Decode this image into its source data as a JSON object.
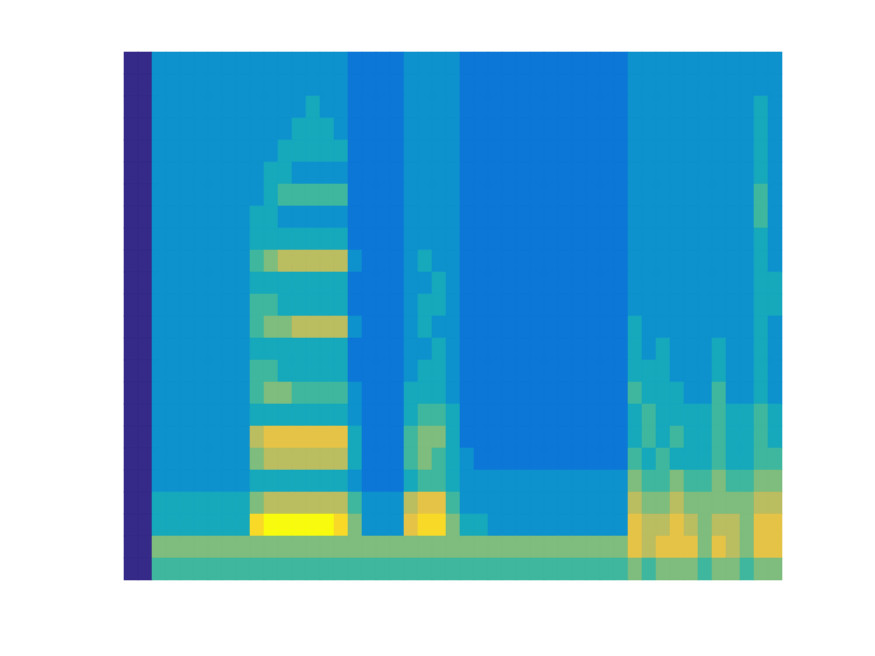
{
  "chart_data": {
    "type": "heatmap",
    "tick_labels": false,
    "zlim": [
      0,
      10
    ],
    "z": [
      [
        0,
        0,
        3,
        3,
        3,
        3,
        3,
        3,
        3,
        3,
        3,
        3,
        3,
        3,
        3,
        3,
        2,
        2,
        2,
        2,
        3,
        3,
        3,
        3,
        2,
        2,
        2,
        2,
        2,
        2,
        2,
        2,
        2,
        2,
        2,
        2,
        3,
        3,
        3,
        3,
        3,
        3,
        3,
        3,
        3,
        3,
        3
      ],
      [
        0,
        0,
        3,
        3,
        3,
        3,
        3,
        3,
        3,
        3,
        3,
        3,
        3,
        3,
        3,
        3,
        2,
        2,
        2,
        2,
        3,
        3,
        3,
        3,
        2,
        2,
        2,
        2,
        2,
        2,
        2,
        2,
        2,
        2,
        2,
        2,
        3,
        3,
        3,
        3,
        3,
        3,
        3,
        3,
        3,
        3,
        3
      ],
      [
        0,
        0,
        3,
        3,
        3,
        3,
        3,
        3,
        3,
        3,
        3,
        3,
        3,
        4,
        3,
        3,
        2,
        2,
        2,
        2,
        3,
        3,
        3,
        3,
        2,
        2,
        2,
        2,
        2,
        2,
        2,
        2,
        2,
        2,
        2,
        2,
        3,
        3,
        3,
        3,
        3,
        3,
        3,
        3,
        3,
        4,
        3
      ],
      [
        0,
        0,
        3,
        3,
        3,
        3,
        3,
        3,
        3,
        3,
        3,
        3,
        4,
        4,
        4,
        3,
        2,
        2,
        2,
        2,
        3,
        3,
        3,
        3,
        2,
        2,
        2,
        2,
        2,
        2,
        2,
        2,
        2,
        2,
        2,
        2,
        3,
        3,
        3,
        3,
        3,
        3,
        3,
        3,
        3,
        4,
        3
      ],
      [
        0,
        0,
        3,
        3,
        3,
        3,
        3,
        3,
        3,
        3,
        3,
        4,
        4,
        4,
        4,
        4,
        2,
        2,
        2,
        2,
        3,
        3,
        3,
        3,
        2,
        2,
        2,
        2,
        2,
        2,
        2,
        2,
        2,
        2,
        2,
        2,
        3,
        3,
        3,
        3,
        3,
        3,
        3,
        3,
        3,
        4,
        3
      ],
      [
        0,
        0,
        3,
        3,
        3,
        3,
        3,
        3,
        3,
        3,
        4,
        4,
        3,
        3,
        3,
        3,
        2,
        2,
        2,
        2,
        3,
        3,
        3,
        3,
        2,
        2,
        2,
        2,
        2,
        2,
        2,
        2,
        2,
        2,
        2,
        2,
        3,
        3,
        3,
        3,
        3,
        3,
        3,
        3,
        3,
        4,
        3
      ],
      [
        0,
        0,
        3,
        3,
        3,
        3,
        3,
        3,
        3,
        3,
        4,
        5,
        5,
        5,
        5,
        5,
        2,
        2,
        2,
        2,
        3,
        3,
        3,
        3,
        2,
        2,
        2,
        2,
        2,
        2,
        2,
        2,
        2,
        2,
        2,
        2,
        3,
        3,
        3,
        3,
        3,
        3,
        3,
        3,
        3,
        5,
        3
      ],
      [
        0,
        0,
        3,
        3,
        3,
        3,
        3,
        3,
        3,
        4,
        4,
        3,
        3,
        3,
        3,
        3,
        2,
        2,
        2,
        2,
        3,
        3,
        3,
        3,
        2,
        2,
        2,
        2,
        2,
        2,
        2,
        2,
        2,
        2,
        2,
        2,
        3,
        3,
        3,
        3,
        3,
        3,
        3,
        3,
        3,
        5,
        3
      ],
      [
        0,
        0,
        3,
        3,
        3,
        3,
        3,
        3,
        3,
        4,
        4,
        4,
        4,
        4,
        4,
        4,
        2,
        2,
        2,
        2,
        3,
        3,
        3,
        3,
        2,
        2,
        2,
        2,
        2,
        2,
        2,
        2,
        2,
        2,
        2,
        2,
        3,
        3,
        3,
        3,
        3,
        3,
        3,
        3,
        3,
        4,
        3
      ],
      [
        0,
        0,
        3,
        3,
        3,
        3,
        3,
        3,
        3,
        5,
        6,
        7,
        7,
        7,
        7,
        7,
        3,
        2,
        2,
        2,
        3,
        4,
        3,
        3,
        2,
        2,
        2,
        2,
        2,
        2,
        2,
        2,
        2,
        2,
        2,
        2,
        3,
        3,
        3,
        3,
        3,
        3,
        3,
        3,
        3,
        4,
        3
      ],
      [
        0,
        0,
        3,
        3,
        3,
        3,
        3,
        3,
        3,
        4,
        4,
        4,
        4,
        4,
        4,
        4,
        2,
        2,
        2,
        2,
        3,
        3,
        4,
        3,
        2,
        2,
        2,
        2,
        2,
        2,
        2,
        2,
        2,
        2,
        2,
        2,
        3,
        3,
        3,
        3,
        3,
        3,
        3,
        3,
        3,
        4,
        4
      ],
      [
        0,
        0,
        3,
        3,
        3,
        3,
        3,
        3,
        3,
        5,
        5,
        4,
        4,
        4,
        4,
        4,
        2,
        2,
        2,
        2,
        3,
        4,
        4,
        3,
        2,
        2,
        2,
        2,
        2,
        2,
        2,
        2,
        2,
        2,
        2,
        2,
        3,
        3,
        3,
        3,
        3,
        3,
        3,
        3,
        3,
        4,
        4
      ],
      [
        0,
        0,
        3,
        3,
        3,
        3,
        3,
        3,
        3,
        5,
        6,
        6,
        7,
        7,
        7,
        7,
        3,
        2,
        2,
        2,
        3,
        4,
        3,
        3,
        2,
        2,
        2,
        2,
        2,
        2,
        2,
        2,
        2,
        2,
        2,
        2,
        4,
        3,
        3,
        3,
        3,
        3,
        3,
        3,
        3,
        4,
        3
      ],
      [
        0,
        0,
        3,
        3,
        3,
        3,
        3,
        3,
        3,
        4,
        4,
        4,
        4,
        4,
        4,
        4,
        2,
        2,
        2,
        2,
        3,
        3,
        4,
        3,
        2,
        2,
        2,
        2,
        2,
        2,
        2,
        2,
        2,
        2,
        2,
        2,
        4,
        3,
        4,
        3,
        3,
        3,
        4,
        3,
        3,
        4,
        3
      ],
      [
        0,
        0,
        3,
        3,
        3,
        3,
        3,
        3,
        3,
        5,
        5,
        4,
        4,
        4,
        4,
        4,
        2,
        2,
        2,
        2,
        3,
        4,
        4,
        3,
        2,
        2,
        2,
        2,
        2,
        2,
        2,
        2,
        2,
        2,
        2,
        2,
        4,
        4,
        4,
        3,
        3,
        3,
        4,
        3,
        3,
        4,
        3
      ],
      [
        0,
        0,
        3,
        3,
        3,
        3,
        3,
        3,
        3,
        5,
        6,
        6,
        5,
        5,
        5,
        5,
        3,
        2,
        2,
        2,
        4,
        4,
        4,
        3,
        2,
        2,
        2,
        2,
        2,
        2,
        2,
        2,
        2,
        2,
        2,
        2,
        5,
        4,
        4,
        4,
        3,
        3,
        5,
        3,
        3,
        4,
        3
      ],
      [
        0,
        0,
        3,
        3,
        3,
        3,
        3,
        3,
        3,
        4,
        4,
        4,
        4,
        4,
        4,
        4,
        3,
        2,
        2,
        2,
        4,
        5,
        5,
        4,
        2,
        2,
        2,
        2,
        2,
        2,
        2,
        2,
        2,
        2,
        2,
        2,
        4,
        5,
        4,
        4,
        4,
        4,
        5,
        4,
        4,
        5,
        4
      ],
      [
        0,
        0,
        3,
        3,
        3,
        3,
        3,
        3,
        3,
        7,
        8,
        8,
        8,
        8,
        8,
        8,
        4,
        2,
        2,
        2,
        5,
        6,
        6,
        4,
        2,
        2,
        2,
        2,
        2,
        2,
        2,
        2,
        2,
        2,
        2,
        2,
        4,
        5,
        4,
        5,
        4,
        4,
        5,
        4,
        4,
        5,
        4
      ],
      [
        0,
        0,
        3,
        3,
        3,
        3,
        3,
        3,
        3,
        6,
        7,
        7,
        7,
        7,
        7,
        7,
        4,
        2,
        2,
        2,
        5,
        6,
        5,
        4,
        3,
        2,
        2,
        2,
        2,
        2,
        2,
        2,
        2,
        2,
        2,
        2,
        5,
        4,
        5,
        4,
        4,
        4,
        5,
        4,
        4,
        5,
        5
      ],
      [
        0,
        0,
        3,
        3,
        3,
        3,
        3,
        3,
        3,
        4,
        4,
        4,
        4,
        4,
        4,
        4,
        3,
        2,
        2,
        2,
        4,
        5,
        5,
        4,
        3,
        3,
        3,
        3,
        3,
        3,
        3,
        3,
        3,
        3,
        3,
        3,
        6,
        5,
        5,
        6,
        5,
        5,
        6,
        5,
        5,
        6,
        6
      ],
      [
        0,
        0,
        4,
        4,
        4,
        4,
        4,
        4,
        4,
        6,
        7,
        7,
        7,
        7,
        7,
        7,
        5,
        3,
        3,
        3,
        7,
        8,
        8,
        5,
        3,
        3,
        3,
        3,
        3,
        3,
        3,
        3,
        3,
        3,
        3,
        3,
        7,
        6,
        6,
        7,
        6,
        6,
        6,
        6,
        6,
        7,
        7
      ],
      [
        0,
        0,
        4,
        4,
        4,
        4,
        4,
        4,
        4,
        9,
        10,
        10,
        10,
        10,
        10,
        9,
        6,
        3,
        3,
        3,
        8,
        9,
        9,
        6,
        4,
        4,
        3,
        3,
        3,
        3,
        3,
        3,
        3,
        3,
        3,
        3,
        8,
        7,
        7,
        8,
        7,
        6,
        7,
        7,
        6,
        8,
        8
      ],
      [
        0,
        0,
        6,
        6,
        6,
        6,
        6,
        6,
        6,
        6,
        6,
        6,
        6,
        6,
        6,
        6,
        6,
        6,
        6,
        6,
        6,
        6,
        6,
        6,
        6,
        6,
        6,
        6,
        6,
        6,
        6,
        6,
        6,
        6,
        6,
        6,
        8,
        7,
        8,
        8,
        8,
        6,
        8,
        7,
        6,
        8,
        8
      ],
      [
        0,
        0,
        5,
        5,
        5,
        5,
        5,
        5,
        5,
        5,
        5,
        5,
        5,
        5,
        5,
        5,
        5,
        5,
        5,
        5,
        5,
        5,
        5,
        5,
        5,
        5,
        5,
        5,
        5,
        5,
        5,
        5,
        5,
        5,
        5,
        5,
        6,
        5,
        6,
        6,
        6,
        5,
        6,
        6,
        5,
        6,
        6
      ]
    ]
  }
}
